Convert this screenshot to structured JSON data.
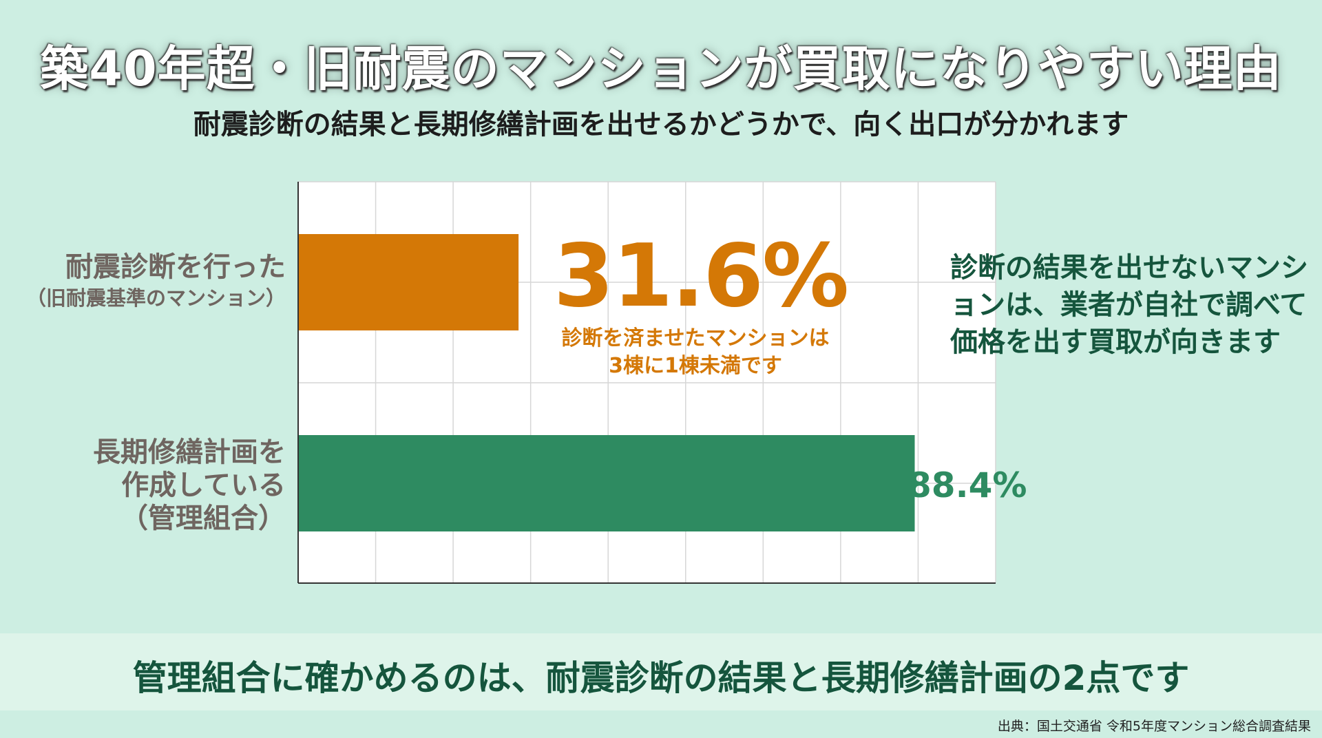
{
  "header": {
    "title": "築40年超・旧耐震のマンションが買取になりやすい理由",
    "subtitle": "耐震診断の結果と長期修繕計画を出せるかどうかで、向く出口が分かれます"
  },
  "chart_data": {
    "type": "bar",
    "orientation": "horizontal",
    "categories": [
      {
        "lines": [
          "耐震診断を行った",
          "（旧耐震基準のマンション）"
        ]
      },
      {
        "lines": [
          "長期修繕計画を",
          "作成している",
          "（管理組合）"
        ]
      }
    ],
    "values": [
      31.6,
      88.4
    ],
    "value_labels": [
      "31.6%",
      "88.4%"
    ],
    "colors": [
      "#d47806",
      "#2e8b61"
    ],
    "xlim": [
      0,
      100
    ],
    "grid": true,
    "annotations": {
      "bar1_note": [
        "診断を済ませたマンションは",
        "3棟に1棟未満です"
      ],
      "side_note": "診断の結果を出せないマンションは、業者が自社で調べて価格を出す買取が向きます"
    }
  },
  "footer": {
    "message": "管理組合に確かめるのは、耐震診断の結果と長期修繕計画の2点です",
    "source": "出典：国土交通省 令和5年度マンション総合調査結果"
  },
  "colors": {
    "background": "#cdeee2",
    "accent_orange": "#d47806",
    "accent_green": "#2e8b61",
    "dark_green_text": "#15553d"
  }
}
